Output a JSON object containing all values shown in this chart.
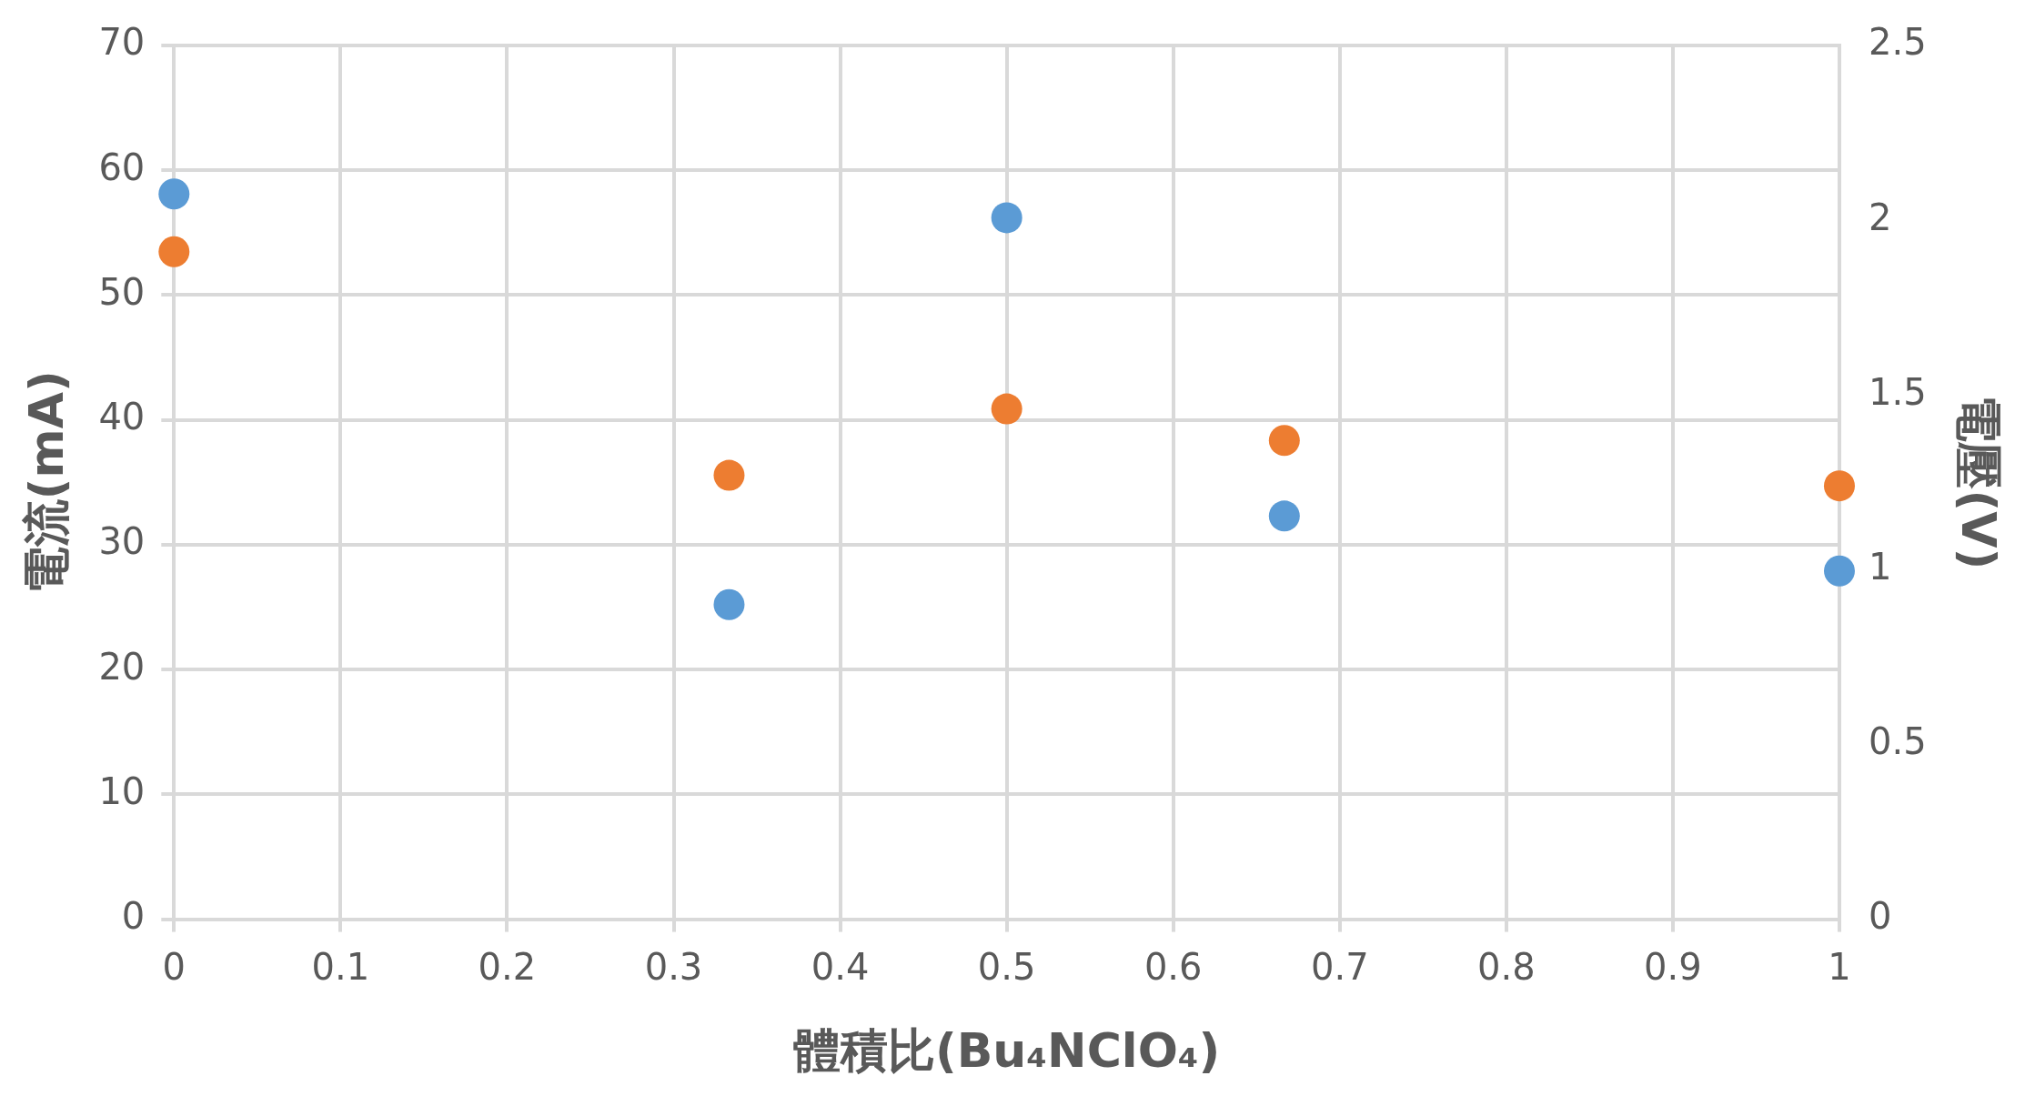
{
  "chart_data": {
    "type": "scatter",
    "xlabel": "體積比(Bu₄NClO₄)",
    "ylabel": "電流(mA)",
    "y2label": "電壓(V)",
    "x": [
      0,
      0.3333,
      0.5,
      0.6667,
      1
    ],
    "series": [
      {
        "color": "#5b9bd5",
        "values": [
          58.1,
          25.2,
          56.2,
          32.3,
          27.9
        ]
      },
      {
        "color": "#ed7d31",
        "axis": "y2",
        "values": [
          1.91,
          1.27,
          1.46,
          1.37,
          1.24
        ]
      }
    ],
    "xlim": [
      0,
      1
    ],
    "xticks": [
      0,
      0.1,
      0.2,
      0.3,
      0.4,
      0.5,
      0.6,
      0.7,
      0.8,
      0.9,
      1
    ],
    "ylim": [
      0,
      70
    ],
    "yticks": [
      0,
      10,
      20,
      30,
      40,
      50,
      60,
      70
    ],
    "y2lim": [
      0,
      2.5
    ],
    "y2ticks": [
      0,
      0.5,
      1,
      1.5,
      2,
      2.5
    ],
    "grid": true,
    "marker": "circle",
    "legend": false
  }
}
